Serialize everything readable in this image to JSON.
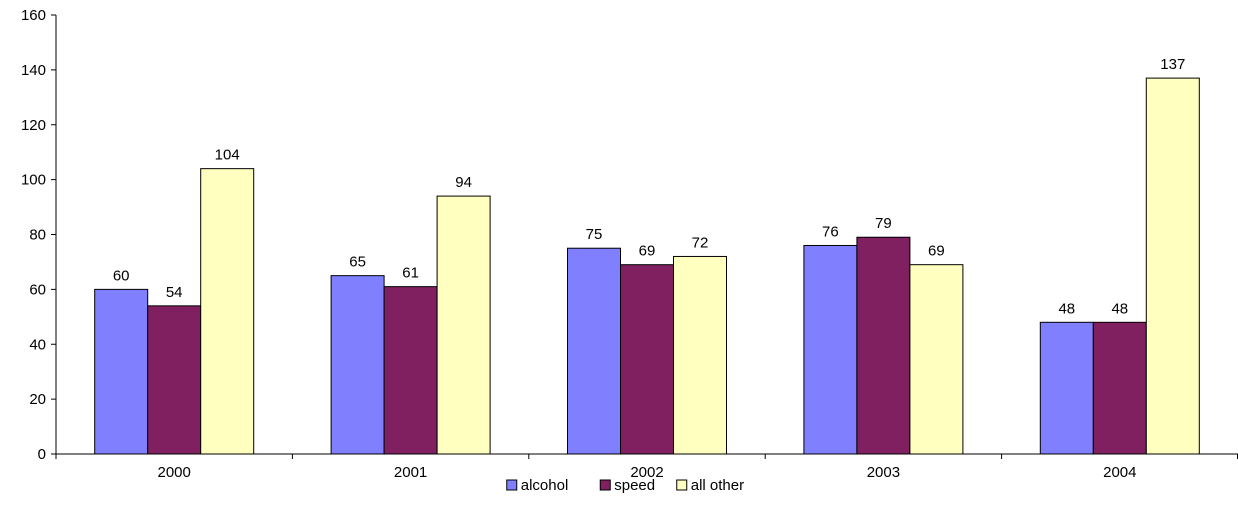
{
  "chart_data": {
    "type": "bar",
    "categories": [
      "2000",
      "2001",
      "2002",
      "2003",
      "2004"
    ],
    "series": [
      {
        "name": "alcohol",
        "color": "#8080FF",
        "values": [
          60,
          65,
          75,
          76,
          48
        ]
      },
      {
        "name": "speed",
        "color": "#802060",
        "values": [
          54,
          61,
          69,
          79,
          48
        ]
      },
      {
        "name": "all other",
        "color": "#FFFFC0",
        "values": [
          104,
          94,
          72,
          69,
          137
        ]
      }
    ],
    "yticks": [
      0,
      20,
      40,
      60,
      80,
      100,
      120,
      140,
      160
    ],
    "ylim": [
      0,
      160
    ],
    "grid": false,
    "legend_position": "bottom-center"
  }
}
